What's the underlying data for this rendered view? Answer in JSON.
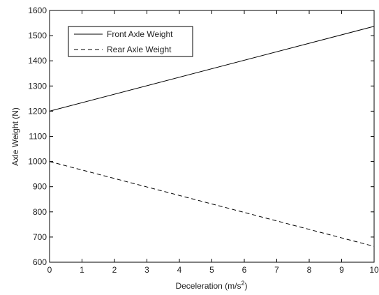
{
  "chart_data": {
    "type": "line",
    "xlabel": "Deceleration (m/s",
    "xlabel_superscript": "2",
    "xlabel_suffix": ")",
    "ylabel": "Axle Weight (N)",
    "xlim": [
      0,
      10
    ],
    "ylim": [
      600,
      1600
    ],
    "xticks": [
      0,
      1,
      2,
      3,
      4,
      5,
      6,
      7,
      8,
      9,
      10
    ],
    "yticks": [
      600,
      700,
      800,
      900,
      1000,
      1100,
      1200,
      1300,
      1400,
      1500,
      1600
    ],
    "grid": false,
    "legend_position": "top-left",
    "series": [
      {
        "name": "Front Axle Weight",
        "style": "solid",
        "color": "#000000",
        "x": [
          0,
          10
        ],
        "y": [
          1200,
          1537
        ]
      },
      {
        "name": "Rear Axle Weight",
        "style": "dashed",
        "color": "#000000",
        "x": [
          0,
          10
        ],
        "y": [
          1000,
          663
        ]
      }
    ]
  }
}
